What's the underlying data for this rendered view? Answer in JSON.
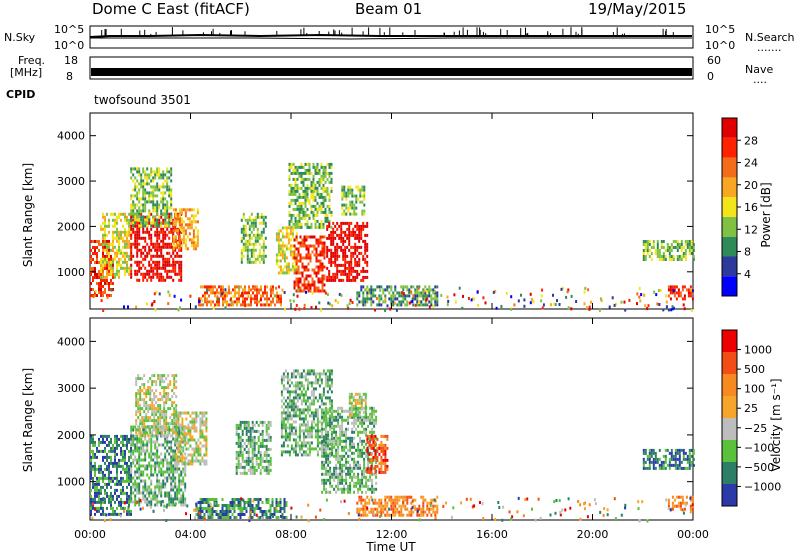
{
  "header": {
    "station": "Dome C East (fitACF)",
    "beam": "Beam 01",
    "date": "19/May/2015"
  },
  "nsky": {
    "left_label": "N.Sky",
    "right_label": "N.Search",
    "left_ticks": [
      "10^5",
      "10^0"
    ],
    "right_ticks": [
      "10^5",
      "10^0"
    ],
    "right_dots": "......."
  },
  "freq": {
    "left_label_1": "Freq.",
    "left_label_2": "[MHz]",
    "left_ticks": [
      "18",
      "8"
    ],
    "right_ticks": [
      "60",
      "0"
    ],
    "right_label": "Nave",
    "right_dots": "....",
    "cpid_label": "CPID",
    "cpid_value": "twofsound 3501"
  },
  "chart_data": [
    {
      "type": "heatmap",
      "name": "Power panel",
      "ylabel": "Slant Range [km]",
      "yticks": [
        "4000",
        "3000",
        "2000",
        "1000"
      ],
      "ylim": [
        180,
        4500
      ],
      "xlim": [
        0,
        24
      ],
      "colorbar": {
        "label": "Power [dB]",
        "ticks": [
          "28",
          "24",
          "20",
          "16",
          "12",
          "8",
          "4"
        ],
        "colors": [
          "#0000ff",
          "#2d3a9c",
          "#2e8b57",
          "#7fc242",
          "#f4e51a",
          "#f7a721",
          "#f46b1a",
          "#ff2200",
          "#e00000"
        ]
      },
      "regions": [
        {
          "t": [
            0.0,
            0.9
          ],
          "r": [
            500,
            1700
          ],
          "level": 7
        },
        {
          "t": [
            0.4,
            1.6
          ],
          "r": [
            900,
            2300
          ],
          "level": 4
        },
        {
          "t": [
            1.6,
            3.6
          ],
          "r": [
            800,
            2300
          ],
          "level": 8
        },
        {
          "t": [
            1.6,
            3.2
          ],
          "r": [
            2000,
            3300
          ],
          "level": 3
        },
        {
          "t": [
            3.3,
            4.3
          ],
          "r": [
            1500,
            2400
          ],
          "level": 5
        },
        {
          "t": [
            4.3,
            7.6
          ],
          "r": [
            300,
            700
          ],
          "level": 6
        },
        {
          "t": [
            6.0,
            7.0
          ],
          "r": [
            1200,
            2300
          ],
          "level": 3
        },
        {
          "t": [
            7.4,
            8.2
          ],
          "r": [
            1000,
            2000
          ],
          "level": 4
        },
        {
          "t": [
            7.9,
            9.6
          ],
          "r": [
            2000,
            3400
          ],
          "level": 3
        },
        {
          "t": [
            8.1,
            9.3
          ],
          "r": [
            600,
            1800
          ],
          "level": 7
        },
        {
          "t": [
            9.4,
            11.0
          ],
          "r": [
            800,
            2100
          ],
          "level": 8
        },
        {
          "t": [
            10.0,
            10.9
          ],
          "r": [
            2300,
            2900
          ],
          "level": 3
        },
        {
          "t": [
            10.6,
            13.8
          ],
          "r": [
            300,
            700
          ],
          "level": 2
        },
        {
          "t": [
            22.0,
            24.0
          ],
          "r": [
            1300,
            1700
          ],
          "level": 3
        },
        {
          "t": [
            23.0,
            24.0
          ],
          "r": [
            400,
            700
          ],
          "level": 7
        }
      ]
    },
    {
      "type": "heatmap",
      "name": "Velocity panel",
      "ylabel": "Slant Range [km]",
      "yticks": [
        "4000",
        "3000",
        "2000",
        "1000"
      ],
      "ylim": [
        180,
        4500
      ],
      "xlim": [
        0,
        24
      ],
      "xticks": [
        "00:00",
        "04:00",
        "08:00",
        "12:00",
        "16:00",
        "20:00",
        "00:00"
      ],
      "xlabel": "Time UT",
      "colorbar": {
        "label": "Velocity [m s⁻¹]",
        "ticks": [
          "1000",
          "500",
          "100",
          "25",
          "−25",
          "−100",
          "−500",
          "−1000"
        ],
        "colors": [
          "#2a3aa8",
          "#2c7f66",
          "#59c13b",
          "#bdbdbd",
          "#f7a52a",
          "#f6891f",
          "#f24d14",
          "#ee0000"
        ]
      },
      "regions": [
        {
          "t": [
            0.0,
            1.6
          ],
          "r": [
            300,
            2000
          ],
          "level": 1
        },
        {
          "t": [
            1.6,
            3.8
          ],
          "r": [
            500,
            2200
          ],
          "level": 2
        },
        {
          "t": [
            1.8,
            3.4
          ],
          "r": [
            2000,
            3300
          ],
          "level": 3
        },
        {
          "t": [
            3.4,
            4.6
          ],
          "r": [
            1400,
            2500
          ],
          "level": 3
        },
        {
          "t": [
            4.2,
            7.8
          ],
          "r": [
            250,
            650
          ],
          "level": 1
        },
        {
          "t": [
            5.8,
            7.2
          ],
          "r": [
            1200,
            2300
          ],
          "level": 2
        },
        {
          "t": [
            7.6,
            9.6
          ],
          "r": [
            1600,
            3400
          ],
          "level": 2
        },
        {
          "t": [
            9.2,
            11.4
          ],
          "r": [
            800,
            2600
          ],
          "level": 2
        },
        {
          "t": [
            10.3,
            11.0
          ],
          "r": [
            2400,
            2900
          ],
          "level": 3
        },
        {
          "t": [
            11.0,
            11.8
          ],
          "r": [
            1200,
            2000
          ],
          "level": 6
        },
        {
          "t": [
            10.6,
            13.8
          ],
          "r": [
            300,
            700
          ],
          "level": 5
        },
        {
          "t": [
            22.0,
            24.0
          ],
          "r": [
            1300,
            1700
          ],
          "level": 1
        },
        {
          "t": [
            23.0,
            24.0
          ],
          "r": [
            400,
            700
          ],
          "level": 5
        }
      ]
    }
  ]
}
